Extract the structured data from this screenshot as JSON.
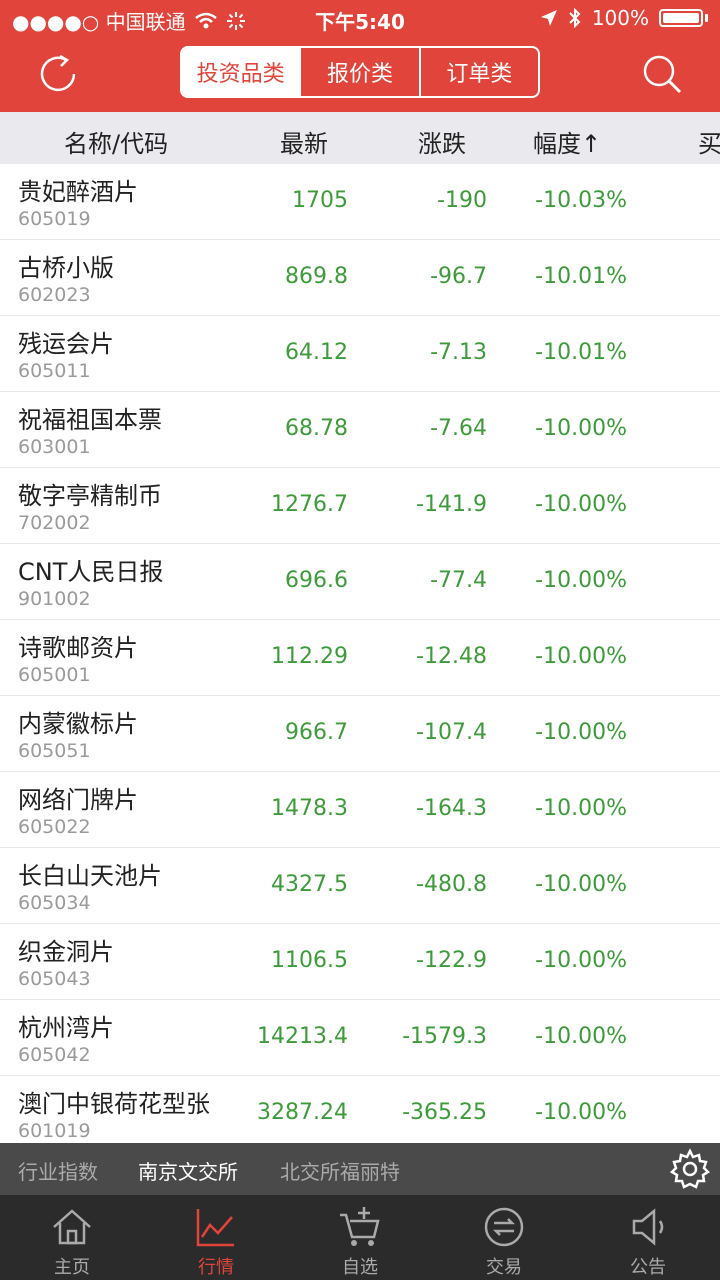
{
  "status_bar": {
    "carrier": "●●●●○ 中国联通",
    "time": "下午5:40",
    "battery": "100%"
  },
  "header": {
    "tabs": [
      {
        "label": "投资品类",
        "active": true
      },
      {
        "label": "报价类",
        "active": false
      },
      {
        "label": "订单类",
        "active": false
      }
    ]
  },
  "columns": {
    "name": "名称/代码",
    "latest": "最新",
    "change": "涨跌",
    "pct": "幅度↑",
    "buy": "买"
  },
  "rows": [
    {
      "name": "贵妃醉酒片",
      "code": "605019",
      "latest": "1705",
      "change": "-190",
      "pct": "-10.03%"
    },
    {
      "name": "古桥小版",
      "code": "602023",
      "latest": "869.8",
      "change": "-96.7",
      "pct": "-10.01%"
    },
    {
      "name": "残运会片",
      "code": "605011",
      "latest": "64.12",
      "change": "-7.13",
      "pct": "-10.01%"
    },
    {
      "name": "祝福祖国本票",
      "code": "603001",
      "latest": "68.78",
      "change": "-7.64",
      "pct": "-10.00%"
    },
    {
      "name": "敬字亭精制币",
      "code": "702002",
      "latest": "1276.7",
      "change": "-141.9",
      "pct": "-10.00%"
    },
    {
      "name": "CNT人民日报",
      "code": "901002",
      "latest": "696.6",
      "change": "-77.4",
      "pct": "-10.00%"
    },
    {
      "name": "诗歌邮资片",
      "code": "605001",
      "latest": "112.29",
      "change": "-12.48",
      "pct": "-10.00%"
    },
    {
      "name": "内蒙徽标片",
      "code": "605051",
      "latest": "966.7",
      "change": "-107.4",
      "pct": "-10.00%"
    },
    {
      "name": "网络门牌片",
      "code": "605022",
      "latest": "1478.3",
      "change": "-164.3",
      "pct": "-10.00%"
    },
    {
      "name": "长白山天池片",
      "code": "605034",
      "latest": "4327.5",
      "change": "-480.8",
      "pct": "-10.00%"
    },
    {
      "name": "织金洞片",
      "code": "605043",
      "latest": "1106.5",
      "change": "-122.9",
      "pct": "-10.00%"
    },
    {
      "name": "杭州湾片",
      "code": "605042",
      "latest": "14213.4",
      "change": "-1579.3",
      "pct": "-10.00%"
    },
    {
      "name": "澳门中银荷花型张",
      "code": "601019",
      "latest": "3287.24",
      "change": "-365.25",
      "pct": "-10.00%"
    }
  ],
  "exchange_bar": {
    "items": [
      {
        "label": "行业指数",
        "active": false
      },
      {
        "label": "南京文交所",
        "active": true
      },
      {
        "label": "北交所福丽特",
        "active": false
      }
    ]
  },
  "tabbar": {
    "items": [
      {
        "label": "主页",
        "icon": "home-icon",
        "active": false
      },
      {
        "label": "行情",
        "icon": "chart-icon",
        "active": true
      },
      {
        "label": "自选",
        "icon": "cart-plus-icon",
        "active": false
      },
      {
        "label": "交易",
        "icon": "exchange-icon",
        "active": false
      },
      {
        "label": "公告",
        "icon": "speaker-icon",
        "active": false
      }
    ]
  },
  "colors": {
    "brand": "#e0443b",
    "down": "#3d9b3a"
  }
}
